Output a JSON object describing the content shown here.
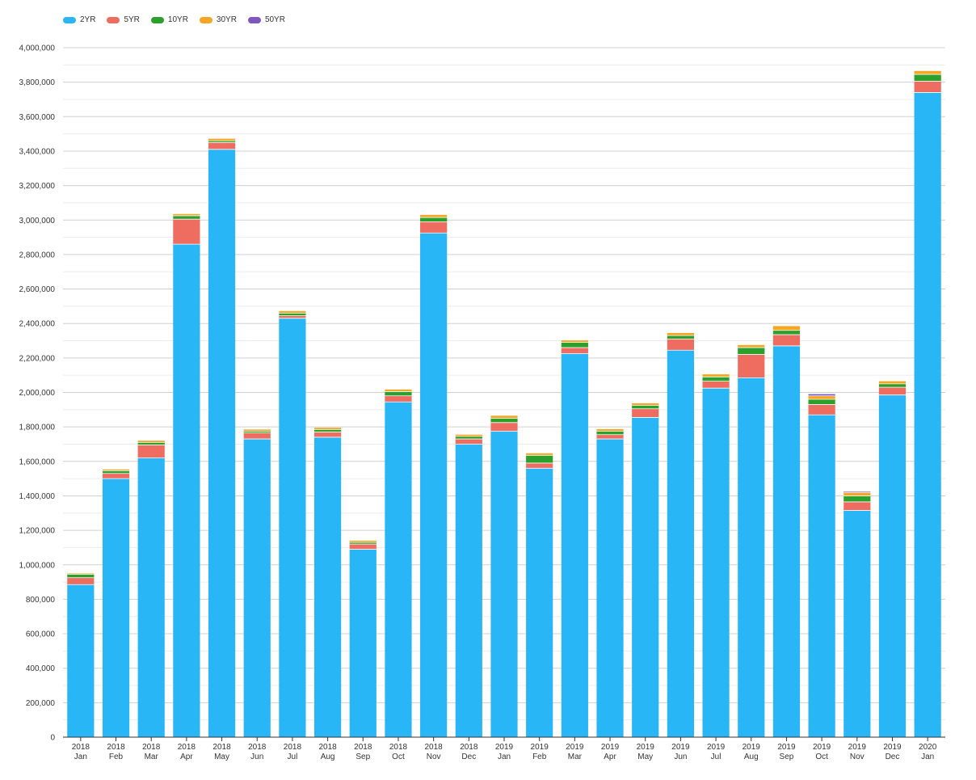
{
  "chart_data": {
    "type": "bar",
    "stacked": true,
    "title": "",
    "xlabel": "",
    "ylabel": "",
    "legend_position": "top-left",
    "grid": true,
    "ylim": [
      0,
      4000000
    ],
    "y_ticks": [
      "0",
      "200,000",
      "400,000",
      "600,000",
      "800,000",
      "1,000,000",
      "1,200,000",
      "1,400,000",
      "1,600,000",
      "1,800,000",
      "2,000,000",
      "2,200,000",
      "2,400,000",
      "2,600,000",
      "2,800,000",
      "3,000,000",
      "3,200,000",
      "3,400,000",
      "3,600,000",
      "3,800,000",
      "4,000,000"
    ],
    "categories": [
      {
        "year": "2018",
        "month": "Jan"
      },
      {
        "year": "2018",
        "month": "Feb"
      },
      {
        "year": "2018",
        "month": "Mar"
      },
      {
        "year": "2018",
        "month": "Apr"
      },
      {
        "year": "2018",
        "month": "May"
      },
      {
        "year": "2018",
        "month": "Jun"
      },
      {
        "year": "2018",
        "month": "Jul"
      },
      {
        "year": "2018",
        "month": "Aug"
      },
      {
        "year": "2018",
        "month": "Sep"
      },
      {
        "year": "2018",
        "month": "Oct"
      },
      {
        "year": "2018",
        "month": "Nov"
      },
      {
        "year": "2018",
        "month": "Dec"
      },
      {
        "year": "2019",
        "month": "Jan"
      },
      {
        "year": "2019",
        "month": "Feb"
      },
      {
        "year": "2019",
        "month": "Mar"
      },
      {
        "year": "2019",
        "month": "Apr"
      },
      {
        "year": "2019",
        "month": "May"
      },
      {
        "year": "2019",
        "month": "Jun"
      },
      {
        "year": "2019",
        "month": "Jul"
      },
      {
        "year": "2019",
        "month": "Aug"
      },
      {
        "year": "2019",
        "month": "Sep"
      },
      {
        "year": "2019",
        "month": "Oct"
      },
      {
        "year": "2019",
        "month": "Nov"
      },
      {
        "year": "2019",
        "month": "Dec"
      },
      {
        "year": "2020",
        "month": "Jan"
      }
    ],
    "series": [
      {
        "name": "2YR",
        "color": "#29b6f6",
        "values": [
          885000,
          1500000,
          1620000,
          2860000,
          3410000,
          1730000,
          2430000,
          1740000,
          1090000,
          1945000,
          2925000,
          1700000,
          1775000,
          1560000,
          2225000,
          1730000,
          1855000,
          2245000,
          2025000,
          2085000,
          2270000,
          1870000,
          1315000,
          1985000,
          3740000
        ]
      },
      {
        "name": "5YR",
        "color": "#ef6c61",
        "values": [
          40000,
          30000,
          75000,
          145000,
          40000,
          35000,
          15000,
          30000,
          30000,
          35000,
          65000,
          30000,
          50000,
          30000,
          35000,
          25000,
          50000,
          65000,
          40000,
          135000,
          65000,
          60000,
          50000,
          45000,
          65000
        ]
      },
      {
        "name": "10YR",
        "color": "#2ca02c",
        "values": [
          20000,
          15000,
          15000,
          20000,
          10000,
          10000,
          15000,
          15000,
          10000,
          25000,
          25000,
          15000,
          25000,
          45000,
          30000,
          20000,
          20000,
          20000,
          25000,
          40000,
          25000,
          30000,
          35000,
          20000,
          40000
        ]
      },
      {
        "name": "30YR",
        "color": "#f5a623",
        "values": [
          5000,
          8000,
          10000,
          10000,
          12000,
          10000,
          12000,
          10000,
          10000,
          12000,
          15000,
          10000,
          15000,
          12000,
          12000,
          12000,
          12000,
          15000,
          15000,
          15000,
          25000,
          20000,
          20000,
          15000,
          20000
        ]
      },
      {
        "name": "50YR",
        "color": "#7e57c2",
        "values": [
          0,
          0,
          0,
          0,
          0,
          0,
          0,
          0,
          0,
          0,
          0,
          0,
          0,
          0,
          0,
          0,
          0,
          0,
          0,
          0,
          0,
          10000,
          5000,
          0,
          0
        ]
      }
    ]
  }
}
